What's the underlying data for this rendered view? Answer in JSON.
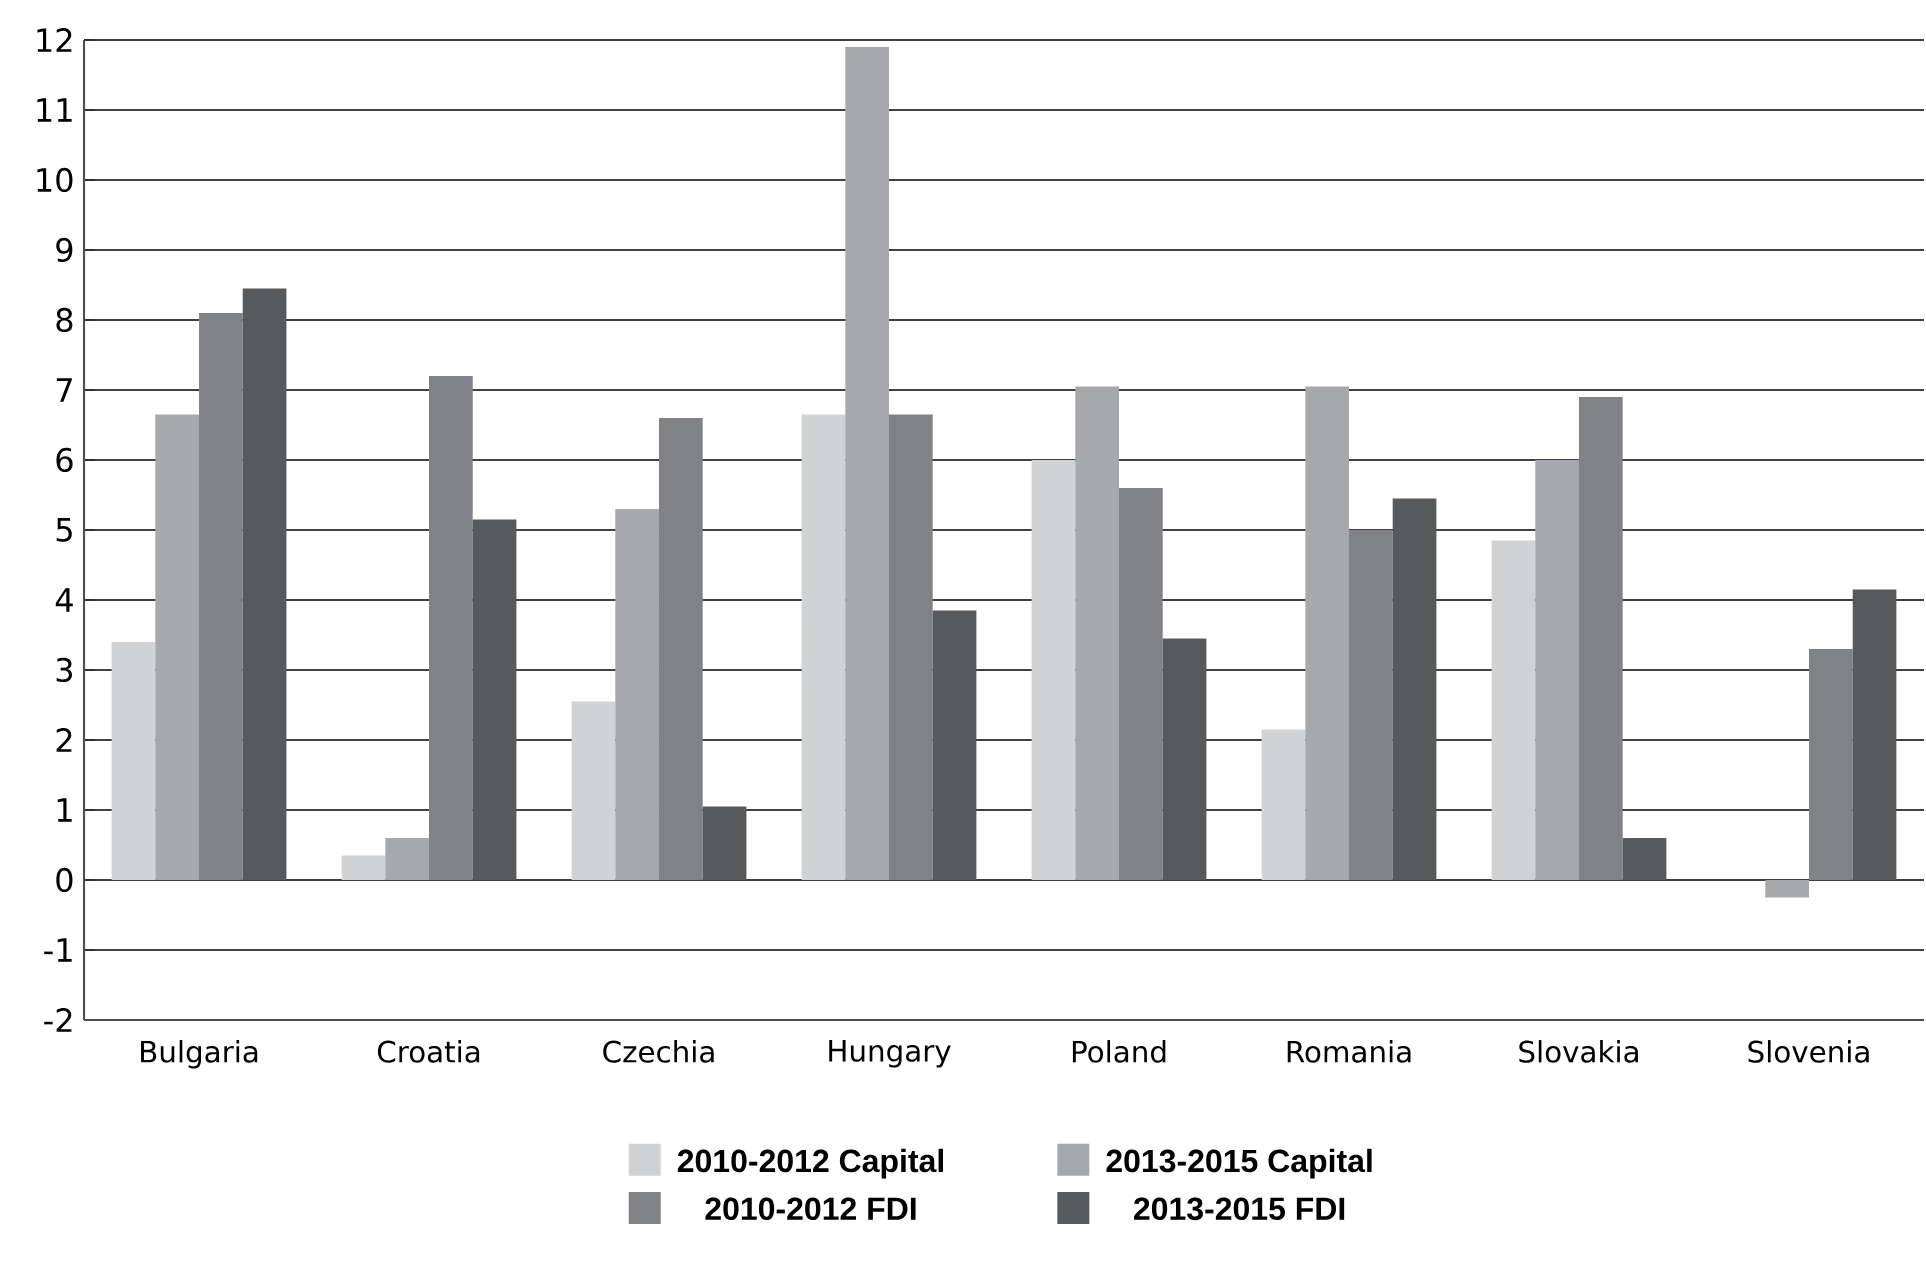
{
  "chart_data": {
    "type": "bar",
    "categories": [
      "Bulgaria",
      "Croatia",
      "Czechia",
      "Hungary",
      "Poland",
      "Romania",
      "Slovakia",
      "Slovenia"
    ],
    "series": [
      {
        "name": "2010-2012 Capital",
        "color": "#d1d2d4",
        "values": [
          3.4,
          0.35,
          2.55,
          6.65,
          6.0,
          2.15,
          4.85,
          0
        ]
      },
      {
        "name": "2013-2015 Capital",
        "color": "#a7a8ab",
        "values": [
          6.65,
          0.6,
          5.3,
          11.9,
          7.05,
          7.05,
          6.0,
          -0.25
        ]
      },
      {
        "name": "2010-2012 FDI",
        "color": "#818285",
        "values": [
          8.1,
          7.2,
          6.6,
          6.65,
          5.6,
          5.0,
          6.9,
          3.3
        ]
      },
      {
        "name": "2013-2015 FDI",
        "color": "#58595b",
        "values": [
          8.45,
          5.15,
          1.05,
          3.85,
          3.45,
          5.45,
          0.6,
          4.15
        ]
      }
    ],
    "ylim": [
      -2,
      12
    ],
    "yticks": [
      -2,
      -1,
      0,
      1,
      2,
      3,
      4,
      5,
      6,
      7,
      8,
      9,
      10,
      11,
      12
    ],
    "grid": "y",
    "legend": "bottom"
  }
}
